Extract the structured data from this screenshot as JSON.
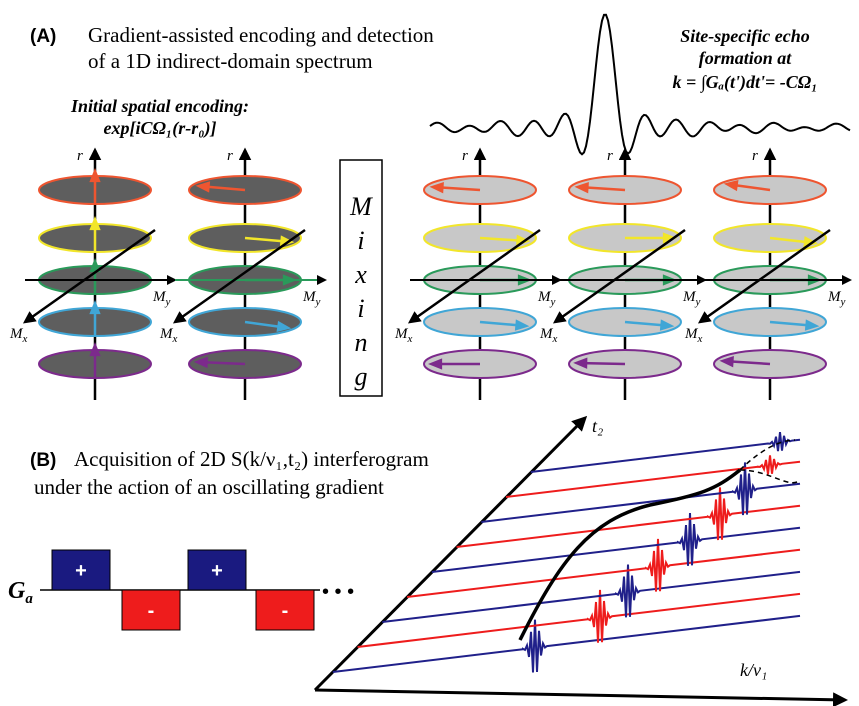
{
  "panel_a": {
    "label": "(A)",
    "title_lines": [
      "Gradient-assisted encoding and detection",
      "of a 1D indirect-domain spectrum"
    ],
    "encoding": {
      "title": "Initial spatial encoding:",
      "formula": "exp[iCΩ₁(r-r₀)]"
    },
    "echo": {
      "lines": [
        "Site-specific echo",
        "formation at"
      ],
      "formula": "k = ∫Gₐ(t')dt'= -CΩ₁"
    },
    "mixing": [
      "M",
      "i",
      "x",
      "i",
      "n",
      "g"
    ],
    "axes": {
      "r": "r",
      "m": "M",
      "x": "x",
      "y": "y"
    }
  },
  "panel_b": {
    "label": "(B)",
    "title_lines": [
      "Acquisition of 2D S(k/ν₁,t₂) interferogram",
      "under the action of an oscillating gradient"
    ],
    "gradient": {
      "symbol": "G",
      "sub": "a",
      "pulses": [
        "+",
        "-",
        "+",
        "-"
      ],
      "more": "• • •"
    },
    "axes": {
      "t2": "t₂",
      "k": "k/ν₁"
    }
  }
}
